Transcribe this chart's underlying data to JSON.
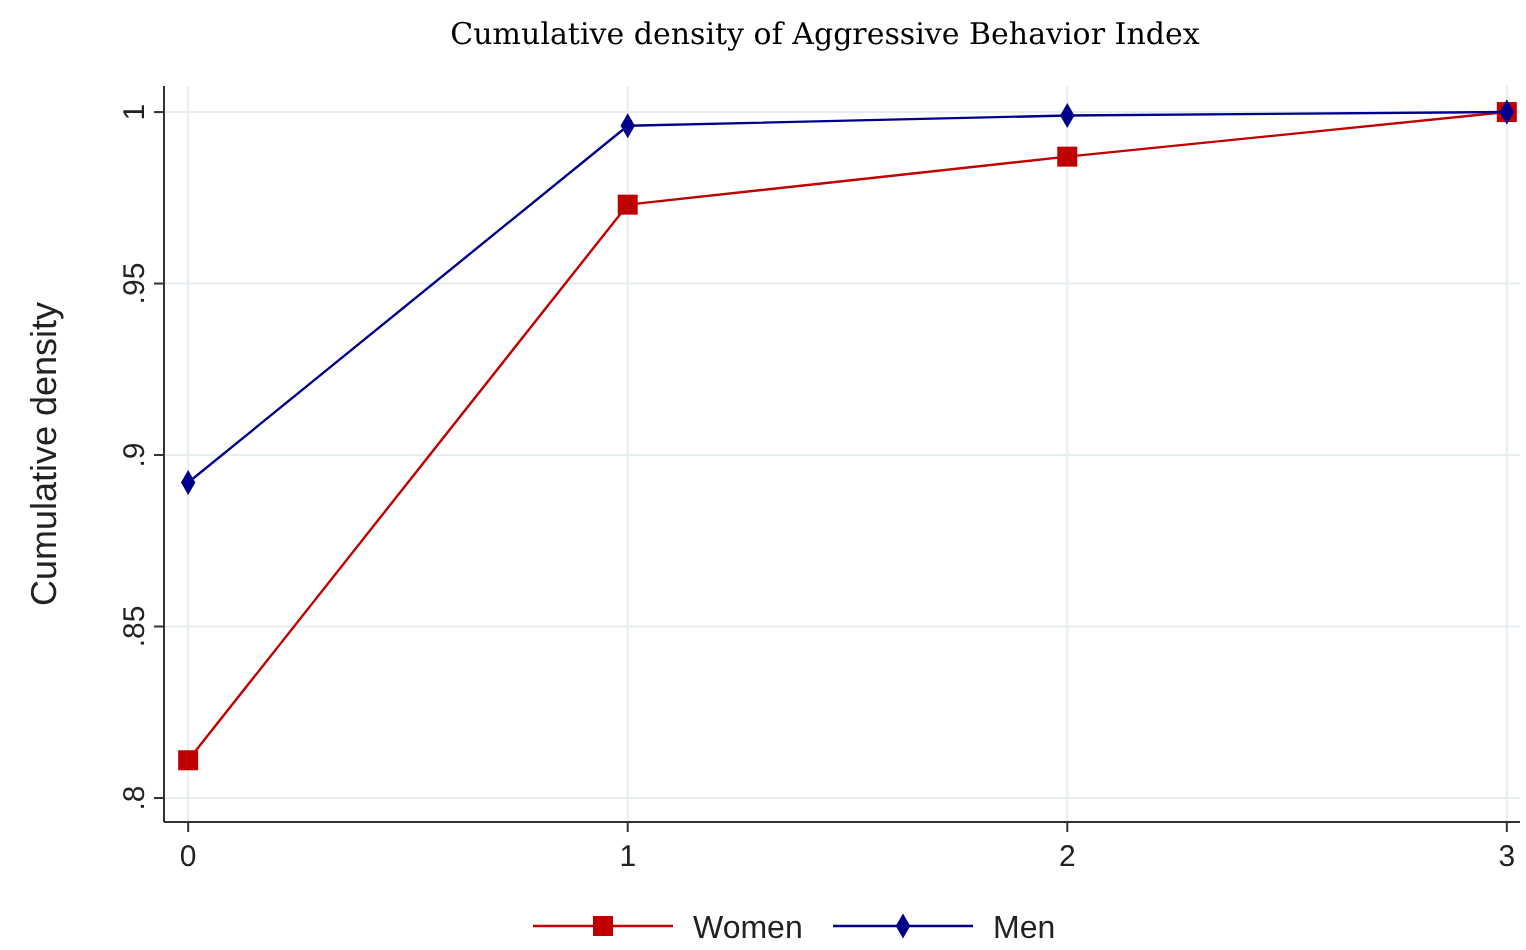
{
  "chart_data": {
    "type": "line",
    "title": "Cumulative density of Aggressive Behavior Index",
    "ylabel": "Cumulative density",
    "x": [
      0,
      1,
      2,
      3
    ],
    "xlim": [
      -0.055,
      3.03
    ],
    "xticks": [
      0,
      1,
      2,
      3
    ],
    "ylim": [
      0.793,
      1.0076
    ],
    "yticks": [
      {
        "value": 0.8,
        "label": ".8"
      },
      {
        "value": 0.85,
        "label": ".85"
      },
      {
        "value": 0.9,
        "label": ".9"
      },
      {
        "value": 0.95,
        "label": ".95"
      },
      {
        "value": 1,
        "label": "1"
      }
    ],
    "grid": true,
    "legend": "bottom",
    "line_style": "solid",
    "series": [
      {
        "name": "Women",
        "color": "#c00000",
        "marker": "square",
        "values": [
          0.811,
          0.973,
          0.987,
          1.0
        ]
      },
      {
        "name": "Men",
        "color": "#00008b",
        "marker": "diamond",
        "values": [
          0.892,
          0.996,
          0.999,
          1.0
        ]
      }
    ]
  }
}
